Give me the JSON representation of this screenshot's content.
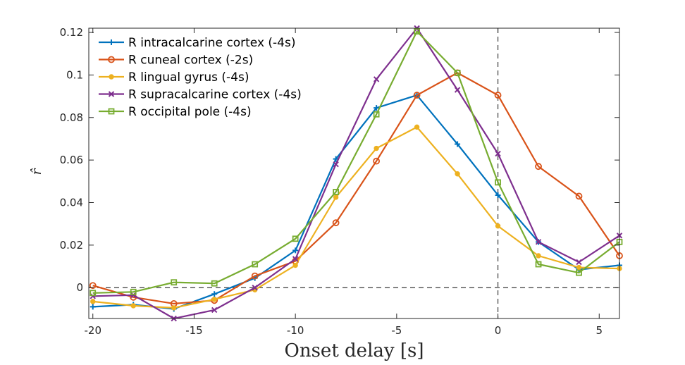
{
  "chart_data": {
    "type": "line",
    "xlabel": "Onset delay [s]",
    "ylabel": "r̂",
    "xlim": [
      -20.2,
      6
    ],
    "ylim": [
      -0.0145,
      0.122
    ],
    "xticks": [
      -20,
      -15,
      -10,
      -5,
      0,
      5
    ],
    "xtick_labels": [
      "-20",
      "-15",
      "-10",
      "-5",
      "0",
      "5"
    ],
    "yticks": [
      0,
      0.02,
      0.04,
      0.06,
      0.08,
      0.1,
      0.12
    ],
    "ytick_labels": [
      "0",
      "0.02",
      "0.04",
      "0.06",
      "0.08",
      "0.1",
      "0.12"
    ],
    "grid": false,
    "legend_position": "top-left",
    "reference_lines": {
      "horizontal_y": 0,
      "vertical_x": 0,
      "style": "dashed"
    },
    "x": [
      -20,
      -18,
      -16,
      -14,
      -12,
      -10,
      -8,
      -6,
      -4,
      -2,
      0,
      2,
      4,
      6
    ],
    "series": [
      {
        "name": "R intracalcarine cortex (-4s)",
        "color": "#0072BD",
        "marker": "plus",
        "values": [
          -0.009,
          -0.008,
          -0.01,
          -0.003,
          0.0045,
          0.0175,
          0.0605,
          0.0845,
          0.0905,
          0.0675,
          0.0435,
          0.0215,
          0.0085,
          0.0105
        ]
      },
      {
        "name": "R cuneal cortex (-2s)",
        "color": "#D95319",
        "marker": "circle",
        "values": [
          0.001,
          -0.0045,
          -0.0075,
          -0.006,
          0.0055,
          0.0125,
          0.0305,
          0.0595,
          0.0905,
          0.101,
          0.0905,
          0.057,
          0.043,
          0.015
        ]
      },
      {
        "name": "R lingual gyrus (-4s)",
        "color": "#EDB120",
        "marker": "dot",
        "values": [
          -0.0065,
          -0.0085,
          -0.0095,
          -0.0055,
          -0.001,
          0.0105,
          0.0425,
          0.0655,
          0.0755,
          0.0535,
          0.029,
          0.015,
          0.0095,
          0.009
        ]
      },
      {
        "name": "R supracalcarine cortex (-4s)",
        "color": "#7E2F8E",
        "marker": "x",
        "values": [
          -0.004,
          -0.0035,
          -0.0145,
          -0.0105,
          0.0,
          0.0135,
          0.058,
          0.098,
          0.122,
          0.093,
          0.063,
          0.0215,
          0.012,
          0.0245
        ]
      },
      {
        "name": "R occipital pole (-4s)",
        "color": "#77AC30",
        "marker": "square",
        "values": [
          -0.0025,
          -0.002,
          0.0025,
          0.002,
          0.011,
          0.023,
          0.045,
          0.0815,
          0.1205,
          0.101,
          0.0495,
          0.011,
          0.007,
          0.0215
        ]
      }
    ]
  }
}
